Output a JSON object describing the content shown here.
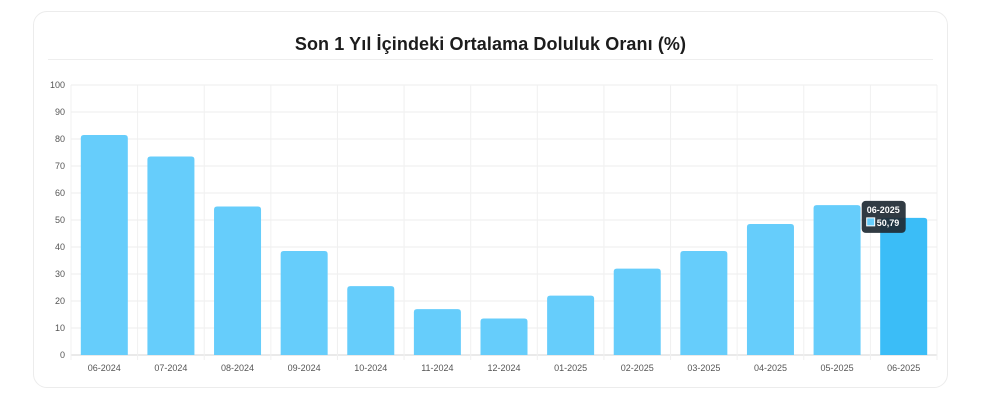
{
  "chart_data": {
    "type": "bar",
    "title": "Son 1 Yıl İçindeki Ortalama Doluluk Oranı (%)",
    "xlabel": "",
    "ylabel": "",
    "categories": [
      "06-2024",
      "07-2024",
      "08-2024",
      "09-2024",
      "10-2024",
      "11-2024",
      "12-2024",
      "01-2025",
      "02-2025",
      "03-2025",
      "04-2025",
      "05-2025",
      "06-2025"
    ],
    "values": [
      81.5,
      73.5,
      55,
      38.5,
      25.5,
      17,
      13.5,
      22,
      32,
      38.5,
      48.5,
      55.5,
      50.79
    ],
    "ylim": [
      0,
      100
    ],
    "yticks": [
      0,
      10,
      20,
      30,
      40,
      50,
      60,
      70,
      80,
      90,
      100
    ],
    "grid": true,
    "bar_color": "#66cdfb",
    "highlight_color": "#3bbdf7",
    "highlight_index": 12,
    "tooltip": {
      "label": "06-2025",
      "value": "50,79",
      "background": "#1f2a33"
    }
  }
}
